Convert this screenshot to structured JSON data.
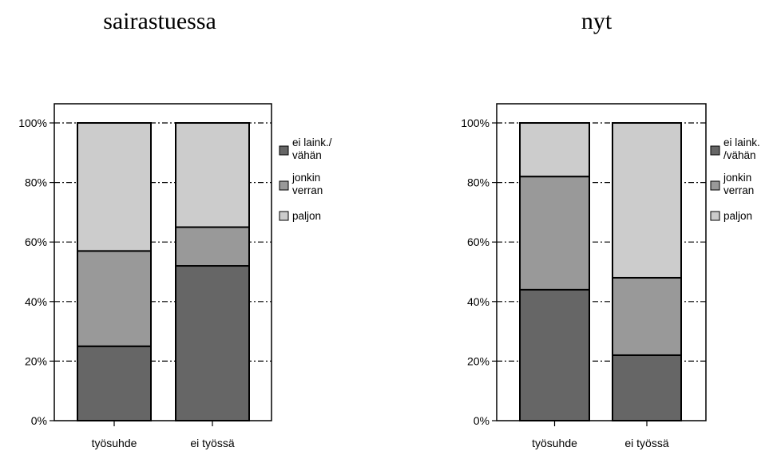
{
  "chart_data": [
    {
      "type": "bar",
      "stacked": true,
      "percent": true,
      "title": "sairastuessa",
      "categories": [
        "työsuhde",
        "ei työssä"
      ],
      "series": [
        {
          "name": "ei laink./ vähän",
          "values": [
            25,
            52
          ],
          "color": "#666666"
        },
        {
          "name": "jonkin verran",
          "values": [
            32,
            13
          ],
          "color": "#999999"
        },
        {
          "name": "paljon",
          "values": [
            43,
            35
          ],
          "color": "#cccccc"
        }
      ],
      "ylim": [
        0,
        100
      ],
      "yticks": [
        "0%",
        "20%",
        "40%",
        "60%",
        "80%",
        "100%"
      ],
      "grid": true,
      "legend": "right",
      "legend_lines": [
        [
          "ei laink./",
          "vähän"
        ],
        [
          "jonkin",
          "verran"
        ],
        [
          "paljon"
        ]
      ]
    },
    {
      "type": "bar",
      "stacked": true,
      "percent": true,
      "title": "nyt",
      "categories": [
        "työsuhde",
        "ei työssä"
      ],
      "series": [
        {
          "name": "ei laink. /vähän",
          "values": [
            44,
            22
          ],
          "color": "#666666"
        },
        {
          "name": "jonkin verran",
          "values": [
            38,
            26
          ],
          "color": "#999999"
        },
        {
          "name": "paljon",
          "values": [
            18,
            52
          ],
          "color": "#cccccc"
        }
      ],
      "ylim": [
        0,
        100
      ],
      "yticks": [
        "0%",
        "20%",
        "40%",
        "60%",
        "80%",
        "100%"
      ],
      "grid": true,
      "legend": "right",
      "legend_lines": [
        [
          "ei laink.",
          "/vähän"
        ],
        [
          "jonkin",
          "verran"
        ],
        [
          "paljon"
        ]
      ]
    }
  ]
}
